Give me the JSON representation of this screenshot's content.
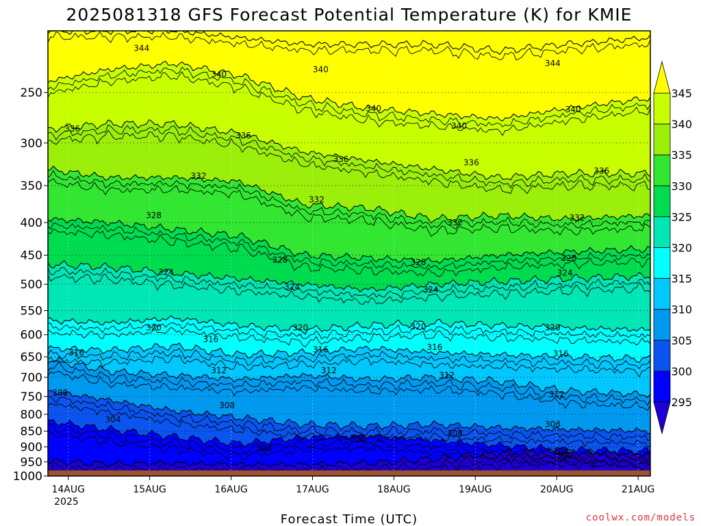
{
  "chart_data": {
    "type": "contour",
    "title": "2025081318 GFS Forecast Potential Temperature (K) for KMIE",
    "xlabel": "Forecast Time (UTC)",
    "ylabel": "",
    "credit": "coolwx.com/models",
    "y_axis": {
      "scale": "log-pressure (inverted)",
      "ylim": [
        1000,
        200
      ],
      "ticks": [
        250,
        300,
        350,
        400,
        450,
        500,
        550,
        600,
        650,
        700,
        750,
        800,
        850,
        900,
        950,
        1000
      ]
    },
    "x_axis": {
      "ticks": [
        "14AUG",
        "15AUG",
        "16AUG",
        "17AUG",
        "18AUG",
        "19AUG",
        "20AUG",
        "21AUG"
      ],
      "year_label": "2025",
      "day_range": [
        -0.25,
        7.15
      ]
    },
    "grid": true,
    "colorbar": {
      "levels": [
        295,
        300,
        305,
        310,
        315,
        320,
        325,
        330,
        335,
        340,
        345
      ],
      "tick_labels": [
        "345",
        "340",
        "335",
        "330",
        "325",
        "320",
        "315",
        "310",
        "305",
        "300",
        "295"
      ],
      "colors": [
        "#1e00d4",
        "#0000ff",
        "#0a55f0",
        "#0099f0",
        "#00c8ff",
        "#00ffff",
        "#00e6b4",
        "#00dc50",
        "#32e632",
        "#9bef0a",
        "#c8ff00",
        "#ffff00"
      ],
      "extends": "both",
      "placement": "right"
    },
    "contours": [
      {
        "value": 300,
        "label": "300",
        "pressure": [
          948,
          958,
          955,
          960,
          960,
          955,
          940,
          920,
          915,
          925
        ],
        "label_at": [
          6.1,
          930
        ]
      },
      {
        "value": 304,
        "label": "304",
        "pressure": [
          820,
          845,
          868,
          890,
          870,
          865,
          880,
          895,
          910,
          915
        ],
        "label_at": [
          [
            0.55,
            815
          ],
          [
            2.4,
            905
          ],
          [
            6.05,
            915
          ]
        ]
      },
      {
        "value": 308,
        "label": "308",
        "pressure": [
          735,
          760,
          790,
          810,
          830,
          835,
          830,
          840,
          845,
          850
        ],
        "label_at": [
          [
            -0.1,
            740
          ],
          [
            1.95,
            775
          ],
          [
            3.55,
            875
          ],
          [
            4.75,
            858
          ],
          [
            5.95,
            830
          ]
        ]
      },
      {
        "value": 312,
        "label": "312",
        "pressure": [
          655,
          685,
          695,
          705,
          695,
          705,
          700,
          710,
          735,
          745
        ],
        "label_at": [
          [
            1.85,
            683
          ],
          [
            3.2,
            683
          ],
          [
            4.65,
            695
          ],
          [
            6.0,
            745
          ]
        ]
      },
      {
        "value": 316,
        "label": "316",
        "pressure": [
          630,
          635,
          625,
          645,
          640,
          630,
          640,
          645,
          650,
          655
        ],
        "label_at": [
          [
            0.1,
            640
          ],
          [
            1.75,
            610
          ],
          [
            3.1,
            633
          ],
          [
            4.5,
            628
          ],
          [
            6.05,
            643
          ]
        ]
      },
      {
        "value": 320,
        "label": "320",
        "pressure": [
          570,
          575,
          565,
          580,
          590,
          580,
          575,
          580,
          585,
          590
        ],
        "label_at": [
          [
            1.05,
            585
          ],
          [
            2.85,
            585
          ],
          [
            4.3,
            583
          ],
          [
            5.95,
            585
          ]
        ]
      },
      {
        "value": 324,
        "label": "324",
        "pressure": [
          465,
          470,
          480,
          490,
          500,
          510,
          500,
          495,
          490,
          485
        ],
        "label_at": [
          [
            1.2,
            479
          ],
          [
            2.75,
            505
          ],
          [
            4.45,
            510
          ],
          [
            6.1,
            480
          ]
        ]
      },
      {
        "value": 328,
        "label": "328",
        "pressure": [
          395,
          400,
          410,
          420,
          450,
          455,
          460,
          450,
          445,
          440
        ],
        "label_at": [
          [
            1.05,
            390
          ],
          [
            2.6,
            458
          ],
          [
            4.3,
            462
          ],
          [
            6.15,
            455
          ]
        ]
      },
      {
        "value": 332,
        "label": "332",
        "pressure": [
          330,
          340,
          340,
          345,
          375,
          380,
          395,
          390,
          395,
          390
        ],
        "label_at": [
          [
            1.6,
            338
          ],
          [
            3.05,
            368
          ],
          [
            4.75,
            400
          ],
          [
            6.25,
            393
          ]
        ]
      },
      {
        "value": 336,
        "label": "336",
        "pressure": [
          285,
          280,
          280,
          290,
          310,
          320,
          330,
          340,
          335,
          335
        ],
        "label_at": [
          [
            0.05,
            285
          ],
          [
            2.15,
            292
          ],
          [
            3.35,
            318
          ],
          [
            4.95,
            322
          ],
          [
            6.55,
            332
          ]
        ]
      },
      {
        "value": 340,
        "label": "340",
        "pressure": [
          240,
          230,
          225,
          235,
          255,
          265,
          270,
          275,
          265,
          255
        ],
        "label_at": [
          [
            1.85,
            234
          ],
          [
            3.1,
            230
          ],
          [
            3.75,
            265
          ],
          [
            4.8,
            282
          ],
          [
            6.2,
            266
          ]
        ]
      },
      {
        "value": 344,
        "label": "344",
        "pressure": [
          200,
          200,
          200,
          205,
          210,
          210,
          210,
          215,
          210,
          205
        ],
        "label_at": [
          [
            0.9,
            213
          ],
          [
            5.95,
            225
          ]
        ]
      }
    ],
    "contour_times": [
      -0.25,
      0.5,
      1.3,
      2.1,
      2.9,
      3.7,
      4.5,
      5.3,
      6.1,
      7.15
    ],
    "ground": {
      "color": "#a0522d",
      "pressure_top": 980
    }
  }
}
